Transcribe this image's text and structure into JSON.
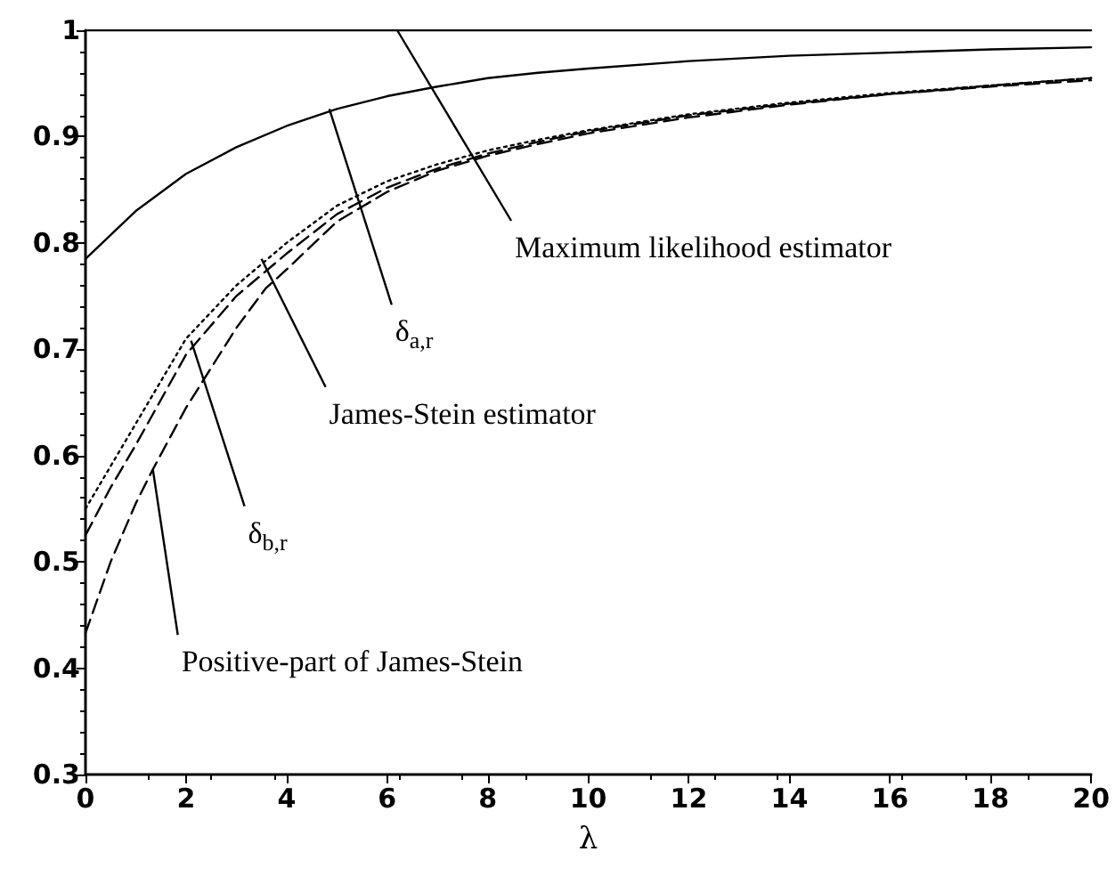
{
  "chart_data": {
    "type": "line",
    "xlabel": "λ",
    "xlim": [
      0,
      20
    ],
    "xticks": [
      0,
      2,
      4,
      6,
      8,
      10,
      12,
      14,
      16,
      18,
      20
    ],
    "ylim": [
      0.3,
      1
    ],
    "yticks": [
      0.3,
      0.4,
      0.5,
      0.6,
      0.7,
      0.8,
      0.9,
      1
    ],
    "grid": false,
    "marker": "none",
    "series": [
      {
        "color": "#000000",
        "line_style": "solid",
        "x": [
          0,
          20
        ],
        "values": [
          1,
          1
        ]
      },
      {
        "color": "#000000",
        "line_style": "solid",
        "x": [
          0,
          1,
          2,
          3,
          4,
          5,
          6,
          7,
          8,
          9,
          10,
          12,
          14,
          16,
          18,
          20
        ],
        "values": [
          0.785,
          0.83,
          0.865,
          0.89,
          0.91,
          0.926,
          0.938,
          0.947,
          0.955,
          0.96,
          0.964,
          0.971,
          0.976,
          0.979,
          0.982,
          0.984
        ]
      },
      {
        "color": "#000000",
        "line_style": "dotted",
        "x": [
          0,
          0.5,
          1,
          2,
          3,
          4,
          5,
          6,
          7,
          8,
          9,
          10,
          12,
          14,
          16,
          18,
          20
        ],
        "values": [
          0.55,
          0.59,
          0.63,
          0.71,
          0.76,
          0.8,
          0.835,
          0.858,
          0.874,
          0.887,
          0.897,
          0.906,
          0.921,
          0.932,
          0.941,
          0.948,
          0.955
        ]
      },
      {
        "color": "#000000",
        "line_style": "dashed",
        "x": [
          0,
          0.5,
          1,
          2,
          3,
          4,
          5,
          6,
          7,
          8,
          9,
          10,
          12,
          14,
          16,
          18,
          20
        ],
        "values": [
          0.525,
          0.57,
          0.61,
          0.695,
          0.75,
          0.79,
          0.827,
          0.852,
          0.87,
          0.884,
          0.895,
          0.905,
          0.92,
          0.931,
          0.94,
          0.948,
          0.955
        ]
      },
      {
        "color": "#000000",
        "line_style": "dashed",
        "x": [
          0,
          0.5,
          1,
          1.34,
          2,
          3,
          3.58,
          4,
          5,
          6,
          7,
          8,
          9,
          10,
          12,
          14,
          16,
          18,
          20
        ],
        "values": [
          0.433,
          0.5,
          0.555,
          0.587,
          0.645,
          0.72,
          0.757,
          0.775,
          0.82,
          0.848,
          0.868,
          0.882,
          0.893,
          0.903,
          0.918,
          0.93,
          0.94,
          0.947,
          0.953
        ]
      }
    ],
    "annotations": [
      {
        "text": "Maximum likelihood estimator",
        "x": 6.2,
        "y": 1
      },
      {
        "text": "δ$_{a,r}$",
        "x": 4.85,
        "y": 0.926
      },
      {
        "text": "James-Stein estimator",
        "x": 3.5,
        "y": 0.785
      },
      {
        "text": "δ$_{b,r}$",
        "x": 2.1,
        "y": 0.708
      },
      {
        "text": "Positive-part of James-Stein",
        "x": 1.34,
        "y": 0.587
      }
    ]
  }
}
